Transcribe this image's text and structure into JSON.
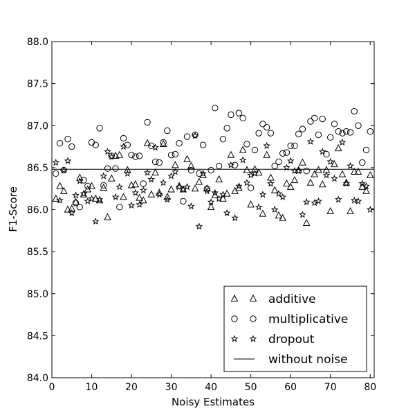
{
  "chart_data": {
    "type": "scatter",
    "xlabel": "Noisy Estimates",
    "ylabel": "F1-Score",
    "xlim": [
      0,
      81
    ],
    "ylim": [
      84.0,
      88.0
    ],
    "xticks": [
      "0",
      "10",
      "20",
      "30",
      "40",
      "50",
      "60",
      "70",
      "80"
    ],
    "yticks": [
      "84.0",
      "84.5",
      "85.0",
      "85.5",
      "86.0",
      "86.5",
      "87.0",
      "87.5",
      "88.0"
    ],
    "grid": false,
    "legend_position": "bottom-right",
    "series": [
      {
        "name": "additive",
        "marker": "triangle",
        "x": [
          1,
          2,
          3,
          4,
          5,
          6,
          7,
          8,
          9,
          10,
          11,
          12,
          13,
          14,
          15,
          16,
          17,
          18,
          19,
          20,
          21,
          22,
          23,
          24,
          25,
          26,
          27,
          28,
          29,
          30,
          31,
          32,
          33,
          34,
          35,
          36,
          37,
          38,
          39,
          40,
          41,
          42,
          43,
          44,
          45,
          46,
          47,
          48,
          49,
          50,
          51,
          52,
          53,
          54,
          55,
          56,
          57,
          58,
          59,
          60,
          61,
          62,
          63,
          64,
          65,
          66,
          67,
          68,
          69,
          70,
          71,
          72,
          73,
          74,
          75,
          76,
          77,
          78,
          79,
          80
        ],
        "values": [
          86.13,
          86.28,
          86.22,
          86.0,
          86.01,
          86.09,
          86.38,
          86.18,
          86.24,
          86.28,
          86.13,
          86.11,
          86.26,
          85.91,
          86.37,
          86.64,
          86.65,
          86.15,
          86.47,
          86.29,
          86.3,
          86.14,
          86.11,
          86.79,
          86.18,
          86.44,
          86.2,
          86.78,
          86.15,
          86.24,
          86.53,
          86.28,
          86.24,
          86.6,
          86.52,
          86.25,
          86.33,
          86.41,
          86.25,
          86.03,
          86.17,
          86.36,
          86.13,
          86.19,
          86.65,
          86.22,
          86.26,
          86.71,
          86.47,
          86.06,
          86.48,
          86.44,
          85.95,
          86.65,
          86.38,
          86.23,
          85.93,
          85.9,
          86.31,
          86.27,
          86.35,
          86.47,
          86.56,
          85.84,
          86.32,
          86.42,
          86.47,
          86.3,
          86.47,
          85.98,
          86.54,
          86.73,
          86.42,
          86.32,
          85.98,
          86.45,
          86.45,
          86.27,
          86.22,
          86.41
        ]
      },
      {
        "name": "multiplicative",
        "marker": "circle",
        "x": [
          1,
          2,
          3,
          4,
          5,
          6,
          7,
          8,
          9,
          10,
          11,
          12,
          13,
          14,
          15,
          16,
          17,
          18,
          19,
          20,
          21,
          22,
          23,
          24,
          25,
          26,
          27,
          28,
          29,
          30,
          31,
          32,
          33,
          34,
          35,
          36,
          37,
          38,
          39,
          40,
          41,
          42,
          43,
          44,
          45,
          46,
          47,
          48,
          49,
          50,
          51,
          52,
          53,
          54,
          55,
          56,
          57,
          58,
          59,
          60,
          61,
          62,
          63,
          64,
          65,
          66,
          67,
          68,
          69,
          70,
          71,
          72,
          73,
          74,
          75,
          76,
          77,
          78,
          79,
          80
        ],
        "values": [
          86.43,
          86.79,
          86.47,
          86.84,
          86.75,
          86.08,
          86.03,
          86.35,
          86.28,
          86.8,
          86.77,
          86.97,
          86.29,
          86.49,
          86.64,
          86.49,
          86.03,
          86.85,
          86.77,
          86.65,
          86.63,
          86.64,
          86.31,
          87.04,
          86.76,
          86.57,
          86.56,
          86.8,
          86.94,
          86.65,
          86.66,
          86.79,
          86.1,
          86.87,
          86.47,
          86.89,
          86.43,
          86.77,
          86.25,
          86.47,
          87.21,
          86.52,
          86.84,
          86.97,
          87.13,
          86.53,
          87.15,
          87.09,
          86.78,
          86.26,
          86.71,
          86.91,
          87.02,
          86.98,
          86.91,
          86.52,
          86.57,
          86.67,
          86.68,
          86.76,
          86.76,
          86.9,
          86.96,
          86.46,
          87.05,
          87.09,
          86.89,
          87.08,
          86.66,
          86.86,
          87.02,
          86.93,
          86.91,
          86.93,
          86.92,
          87.17,
          87.0,
          86.56,
          86.71,
          86.93
        ]
      },
      {
        "name": "dropout",
        "marker": "star",
        "x": [
          1,
          2,
          3,
          4,
          5,
          6,
          7,
          8,
          9,
          10,
          11,
          12,
          13,
          14,
          15,
          16,
          17,
          18,
          19,
          20,
          21,
          22,
          23,
          24,
          25,
          26,
          27,
          28,
          29,
          30,
          31,
          32,
          33,
          34,
          35,
          36,
          37,
          38,
          39,
          40,
          41,
          42,
          43,
          44,
          45,
          46,
          47,
          48,
          49,
          50,
          51,
          52,
          53,
          54,
          55,
          56,
          57,
          58,
          59,
          60,
          61,
          62,
          63,
          64,
          65,
          66,
          67,
          68,
          69,
          70,
          71,
          72,
          73,
          74,
          75,
          76,
          77,
          78,
          79,
          80
        ],
        "values": [
          86.56,
          86.11,
          86.47,
          86.58,
          85.96,
          86.17,
          86.34,
          86.19,
          86.1,
          86.13,
          85.86,
          86.12,
          86.4,
          86.69,
          86.63,
          86.15,
          86.27,
          86.75,
          86.43,
          86.05,
          86.2,
          86.06,
          86.23,
          86.44,
          86.36,
          86.74,
          86.18,
          86.32,
          86.12,
          86.4,
          86.45,
          86.27,
          86.24,
          86.27,
          86.04,
          86.88,
          85.8,
          86.43,
          86.22,
          86.09,
          86.2,
          86.13,
          86.18,
          85.96,
          86.53,
          85.9,
          86.28,
          86.59,
          86.32,
          86.41,
          86.43,
          86.03,
          86.18,
          86.76,
          86.31,
          86.0,
          86.19,
          86.15,
          86.5,
          86.58,
          86.46,
          86.46,
          85.94,
          86.09,
          86.81,
          86.08,
          86.1,
          86.69,
          86.41,
          86.57,
          86.37,
          86.12,
          86.8,
          86.31,
          86.52,
          86.11,
          86.1,
          86.31,
          86.28,
          86.0
        ]
      },
      {
        "name": "without noise",
        "marker": "line",
        "values": [
          86.48
        ]
      }
    ]
  }
}
